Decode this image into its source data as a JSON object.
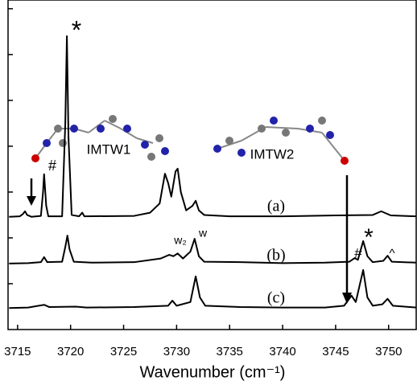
{
  "chart_data": {
    "type": "line",
    "x_label": "Wavenumber (cm⁻¹)",
    "xlim": [
      3714.1,
      3752.6
    ],
    "xticks": [
      3715,
      3720,
      3725,
      3730,
      3735,
      3740,
      3745,
      3750
    ],
    "ylim": [
      0,
      7.19
    ],
    "yticks": [
      1,
      2,
      3,
      4,
      5,
      6,
      7
    ],
    "series": [
      {
        "name": "(a)",
        "color": "#000000",
        "x": [
          3714.2,
          3715.2,
          3715.5,
          3715.7,
          3715.9,
          3716.3,
          3717.2,
          3717.4,
          3717.5,
          3717.7,
          3717.9,
          3719.2,
          3719.5,
          3719.65,
          3719.8,
          3720.1,
          3720.8,
          3721.1,
          3721.3,
          3726,
          3727.5,
          3728.4,
          3728.9,
          3729.2,
          3729.5,
          3729.9,
          3730.1,
          3730.4,
          3730.9,
          3731.5,
          3731.8,
          3732.1,
          3732.6,
          3735,
          3740,
          3745,
          3748.5,
          3749.3,
          3750.2,
          3752.6
        ],
        "values": [
          2.46,
          2.47,
          2.52,
          2.58,
          2.5,
          2.46,
          2.48,
          3.0,
          3.39,
          2.7,
          2.47,
          2.47,
          4.5,
          6.4,
          4.2,
          2.5,
          2.47,
          2.55,
          2.47,
          2.48,
          2.55,
          2.75,
          3.4,
          3.2,
          2.9,
          3.45,
          3.51,
          3.0,
          2.6,
          2.7,
          2.81,
          2.6,
          2.5,
          2.47,
          2.47,
          2.49,
          2.5,
          2.58,
          2.49,
          2.47
        ]
      },
      {
        "name": "(b)",
        "color": "#000000",
        "x": [
          3714.2,
          3716,
          3717.2,
          3717.5,
          3717.8,
          3719.2,
          3719.5,
          3719.7,
          3719.9,
          3720.3,
          3722,
          3726,
          3728.5,
          3729.3,
          3729.7,
          3730.1,
          3730.6,
          3731.3,
          3731.7,
          3732.1,
          3732.6,
          3736,
          3740,
          3744,
          3746.3,
          3746.8,
          3747.1,
          3747.6,
          3748.0,
          3748.5,
          3749.5,
          3749.9,
          3750.3,
          3752.6
        ],
        "values": [
          1.44,
          1.45,
          1.47,
          1.58,
          1.47,
          1.48,
          1.8,
          2.05,
          1.75,
          1.48,
          1.46,
          1.47,
          1.55,
          1.63,
          1.6,
          1.66,
          1.55,
          1.7,
          1.98,
          1.6,
          1.48,
          1.47,
          1.45,
          1.46,
          1.48,
          1.56,
          1.52,
          1.93,
          1.6,
          1.47,
          1.5,
          1.61,
          1.48,
          1.46
        ]
      },
      {
        "name": "(c)",
        "color": "#000000",
        "x": [
          3714.2,
          3716,
          3717.5,
          3718,
          3720.5,
          3721.5,
          3726,
          3729.2,
          3729.6,
          3730,
          3731.3,
          3731.8,
          3732.2,
          3732.7,
          3736,
          3740,
          3744,
          3745.8,
          3746.5,
          3746.9,
          3747.6,
          3748.0,
          3748.5,
          3749.4,
          3749.9,
          3750.4,
          3752.6
        ],
        "values": [
          0.47,
          0.48,
          0.54,
          0.49,
          0.5,
          0.48,
          0.49,
          0.52,
          0.63,
          0.52,
          0.6,
          1.16,
          0.7,
          0.52,
          0.49,
          0.48,
          0.48,
          0.52,
          0.74,
          0.6,
          1.3,
          0.7,
          0.52,
          0.55,
          0.67,
          0.52,
          0.48
        ]
      }
    ],
    "annotations": [
      "*",
      "#",
      "IMTW1",
      "IMTW2",
      "w₂",
      "w",
      "#",
      "*",
      "^"
    ]
  }
}
